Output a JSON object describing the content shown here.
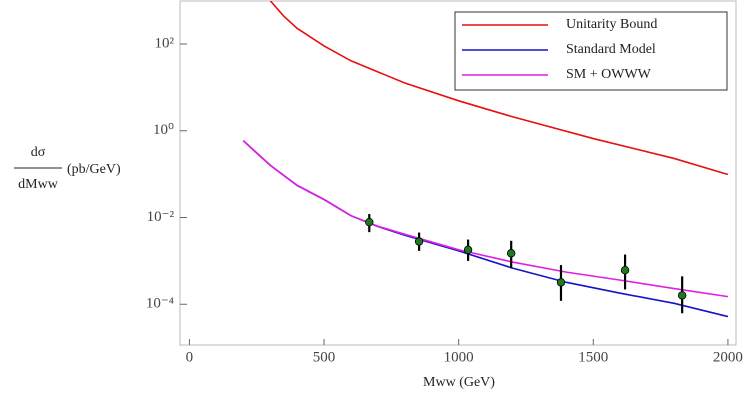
{
  "chart_data": {
    "type": "line",
    "xlabel": "Mww (GeV)",
    "ylabel": {
      "numerator": "dσ",
      "denominator": "dMww",
      "unit": "(pb/GeV)"
    },
    "xlim": [
      -35,
      2030
    ],
    "xticks": [
      0,
      500,
      1000,
      1500,
      2000
    ],
    "ylim": [
      1.15e-05,
      980
    ],
    "log_y": true,
    "yticks": [
      {
        "value": 100,
        "label": "10²"
      },
      {
        "value": 1,
        "label": "10⁰"
      },
      {
        "value": 0.01,
        "label": "10⁻²"
      },
      {
        "value": 0.0001,
        "label": "10⁻⁴"
      }
    ],
    "legend": "upper right",
    "series": [
      {
        "name": "Unitarity Bound",
        "color": "#e81010",
        "x": [
          300,
          350,
          400,
          500,
          600,
          800,
          1000,
          1200,
          1500,
          1800,
          2000
        ],
        "values": [
          1000,
          440,
          230,
          90,
          41,
          12.6,
          4.9,
          2.1,
          0.66,
          0.23,
          0.098
        ]
      },
      {
        "name": "Standard Model",
        "color": "#1414c8",
        "x": [
          200,
          300,
          400,
          500,
          600,
          700,
          800,
          1000,
          1200,
          1400,
          1600,
          1800,
          2000
        ],
        "values": [
          0.59,
          0.16,
          0.055,
          0.026,
          0.011,
          0.0062,
          0.0039,
          0.0017,
          0.00068,
          0.00032,
          0.00018,
          0.000105,
          5.2e-05
        ]
      },
      {
        "name": "SM + OWWW",
        "color": "#e020e0",
        "x": [
          200,
          300,
          400,
          500,
          600,
          700,
          800,
          1000,
          1200,
          1400,
          1600,
          1800,
          2000
        ],
        "values": [
          0.59,
          0.16,
          0.055,
          0.026,
          0.011,
          0.0063,
          0.0041,
          0.0018,
          0.00094,
          0.00055,
          0.00036,
          0.00023,
          0.00015
        ]
      }
    ],
    "measurements": {
      "color": "#1f7a1f",
      "x": [
        668,
        853,
        1035,
        1195,
        1380,
        1618,
        1830
      ],
      "values": [
        0.0078,
        0.0028,
        0.0018,
        0.0015,
        0.00032,
        0.00061,
        0.00016
      ],
      "lower": [
        0.0046,
        0.0017,
        0.001,
        0.00068,
        0.00012,
        0.00022,
        6.2e-05
      ],
      "upper": [
        0.012,
        0.0045,
        0.0031,
        0.0029,
        0.0008,
        0.0014,
        0.00044
      ]
    }
  }
}
